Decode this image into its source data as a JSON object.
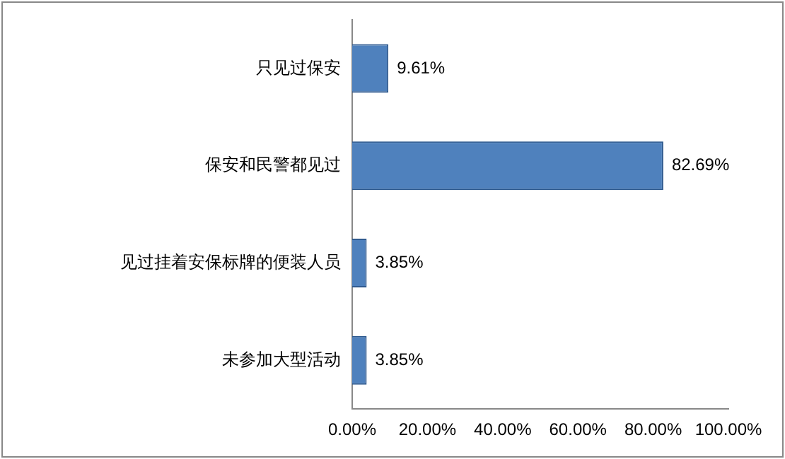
{
  "chart_data": {
    "type": "bar",
    "orientation": "horizontal",
    "categories": [
      "只见过保安",
      "保安和民警都见过",
      "见过挂着安保标牌的便装人员",
      "未参加大型活动"
    ],
    "values": [
      9.61,
      82.69,
      3.85,
      3.85
    ],
    "color": "#4f81bd",
    "value_labels": [
      "9.61%",
      "82.69%",
      "3.85%",
      "3.85%"
    ],
    "xlim": [
      0,
      100
    ],
    "xticks": [
      {
        "value": 0,
        "label": "0.00%"
      },
      {
        "value": 20,
        "label": "20.00%"
      },
      {
        "value": 40,
        "label": "40.00%"
      },
      {
        "value": 60,
        "label": "60.00%"
      },
      {
        "value": 80,
        "label": "80.00%"
      },
      {
        "value": 100,
        "label": "100.00%"
      }
    ],
    "grid": false,
    "legend": false
  }
}
